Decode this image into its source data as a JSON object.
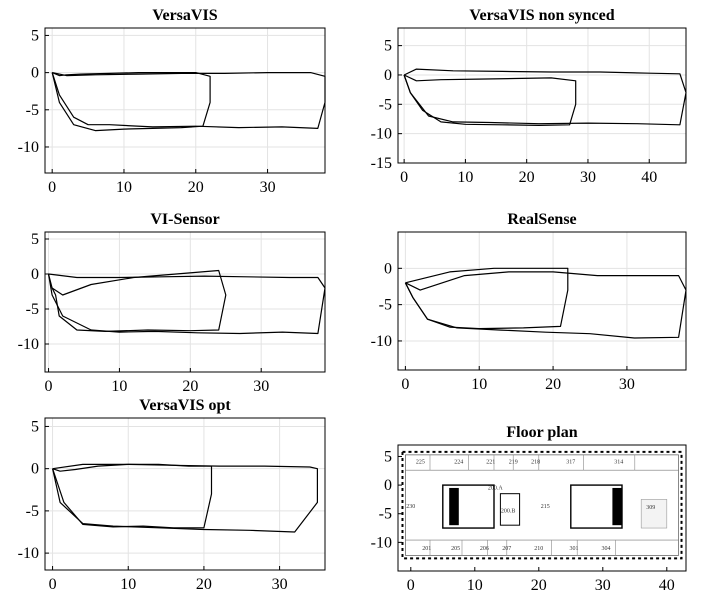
{
  "figure": {
    "panels": [
      {
        "title": "VersaVIS"
      },
      {
        "title": "VersaVIS non synced"
      },
      {
        "title": "VI-Sensor"
      },
      {
        "title": "RealSense"
      },
      {
        "title": "VersaVIS opt"
      },
      {
        "title": "Floor plan"
      }
    ]
  },
  "chart_data": [
    {
      "type": "line",
      "title": "VersaVIS",
      "xlim": [
        -1,
        38
      ],
      "ylim": [
        -13.5,
        6
      ],
      "xticks": [
        0,
        10,
        20,
        30
      ],
      "yticks": [
        5,
        0,
        -5,
        -10
      ],
      "grid": true,
      "series": [
        {
          "x": [
            0,
            1,
            2,
            4,
            8,
            12,
            16,
            20,
            22,
            22,
            21,
            18,
            14,
            10,
            6,
            3,
            1,
            0
          ],
          "y": [
            0,
            -0.4,
            -0.3,
            -0.2,
            -0.1,
            0,
            0,
            0,
            -0.5,
            -4,
            -7.2,
            -7.4,
            -7.5,
            -7.6,
            -7.8,
            -7,
            -4,
            0
          ]
        },
        {
          "x": [
            0,
            2,
            6,
            12,
            18,
            24,
            30,
            36,
            38,
            38,
            37,
            32,
            26,
            20,
            14,
            8,
            5,
            3,
            1,
            0
          ],
          "y": [
            0,
            -0.4,
            -0.3,
            -0.2,
            -0.1,
            -0.1,
            0,
            0,
            -0.5,
            -4,
            -7.5,
            -7.3,
            -7.4,
            -7.2,
            -7.3,
            -7,
            -7,
            -6,
            -3,
            0
          ]
        }
      ]
    },
    {
      "type": "line",
      "title": "VersaVIS non synced",
      "xlim": [
        -1,
        46
      ],
      "ylim": [
        -15,
        8
      ],
      "xticks": [
        0,
        10,
        20,
        30,
        40
      ],
      "yticks": [
        5,
        0,
        -5,
        -10,
        -15
      ],
      "grid": true,
      "series": [
        {
          "x": [
            0,
            2,
            6,
            12,
            18,
            24,
            28,
            28,
            27,
            22,
            16,
            10,
            6,
            3,
            1,
            0
          ],
          "y": [
            0,
            -1,
            -0.8,
            -0.7,
            -0.6,
            -0.5,
            -1,
            -5,
            -8.5,
            -8.6,
            -8.5,
            -8.4,
            -8,
            -6,
            -3,
            0
          ]
        },
        {
          "x": [
            0,
            2,
            8,
            16,
            24,
            32,
            40,
            45,
            46,
            45,
            38,
            30,
            22,
            14,
            8,
            4,
            1,
            0
          ],
          "y": [
            0,
            1,
            0.7,
            0.6,
            0.5,
            0.5,
            0.3,
            0.2,
            -3,
            -8.5,
            -8.3,
            -8.2,
            -8.3,
            -8.1,
            -8,
            -7,
            -3,
            0
          ]
        }
      ]
    },
    {
      "type": "line",
      "title": "VI-Sensor",
      "xlim": [
        -0.5,
        39
      ],
      "ylim": [
        -14,
        6
      ],
      "xticks": [
        0,
        10,
        20,
        30
      ],
      "yticks": [
        5,
        0,
        -5,
        -10
      ],
      "grid": true,
      "series": [
        {
          "x": [
            0,
            0.5,
            2,
            6,
            12,
            18,
            24,
            25,
            24,
            20,
            14,
            8,
            4,
            1.5,
            1,
            0.5,
            0
          ],
          "y": [
            0,
            -2,
            -3,
            -1.5,
            -0.5,
            0,
            0.5,
            -3,
            -8,
            -8.1,
            -8,
            -8.2,
            -8,
            -6,
            -3,
            -2,
            0
          ]
        },
        {
          "x": [
            0,
            4,
            10,
            16,
            22,
            28,
            34,
            38,
            39,
            38,
            33,
            27,
            21,
            15,
            10,
            6,
            2,
            0.5,
            0
          ],
          "y": [
            0,
            -0.5,
            -0.5,
            -0.4,
            -0.3,
            -0.4,
            -0.5,
            -0.5,
            -2,
            -8.5,
            -8.3,
            -8.5,
            -8.4,
            -8.2,
            -8.3,
            -8,
            -6,
            -3,
            0
          ]
        }
      ]
    },
    {
      "type": "line",
      "title": "RealSense",
      "xlim": [
        -1,
        38
      ],
      "ylim": [
        -14,
        5
      ],
      "xticks": [
        0,
        10,
        20,
        30
      ],
      "yticks": [
        0,
        -5,
        -10
      ],
      "grid": true,
      "series": [
        {
          "x": [
            0,
            2,
            6,
            12,
            18,
            22,
            22,
            21,
            16,
            10,
            6,
            3,
            1,
            0
          ],
          "y": [
            -2,
            -1.5,
            -0.5,
            0,
            0,
            0,
            -3,
            -8,
            -8.2,
            -8.3,
            -8.1,
            -7,
            -4,
            -2
          ]
        },
        {
          "x": [
            0,
            2,
            8,
            14,
            20,
            26,
            32,
            37,
            38,
            37,
            31,
            25,
            19,
            13,
            7,
            3,
            1,
            0
          ],
          "y": [
            -2,
            -3,
            -1,
            -0.5,
            -0.5,
            -1,
            -1,
            -1,
            -3,
            -9.5,
            -9.6,
            -9,
            -8.8,
            -8.5,
            -8.2,
            -7,
            -4,
            -2
          ]
        }
      ]
    },
    {
      "type": "line",
      "title": "VersaVIS opt",
      "xlim": [
        -1,
        36
      ],
      "ylim": [
        -12,
        6
      ],
      "xticks": [
        0,
        10,
        20,
        30
      ],
      "yticks": [
        5,
        0,
        -5,
        -10
      ],
      "grid": true,
      "series": [
        {
          "x": [
            0,
            1,
            3,
            6,
            10,
            14,
            18,
            21,
            21,
            20,
            16,
            12,
            8,
            4,
            1.5,
            0
          ],
          "y": [
            0,
            -0.3,
            -0.1,
            0.3,
            0.5,
            0.5,
            0.3,
            0.3,
            -3,
            -7,
            -7,
            -6.8,
            -6.9,
            -6.6,
            -4,
            0
          ]
        },
        {
          "x": [
            0,
            4,
            10,
            16,
            22,
            28,
            34,
            35,
            35,
            32,
            26,
            20,
            14,
            8,
            4,
            1,
            0
          ],
          "y": [
            0,
            0.5,
            0.5,
            0.4,
            0.3,
            0.3,
            0.2,
            0,
            -4,
            -7.5,
            -7.3,
            -7.2,
            -7,
            -6.8,
            -6.5,
            -4,
            0
          ]
        }
      ]
    },
    {
      "type": "image",
      "title": "Floor plan",
      "xlim": [
        -2,
        43
      ],
      "ylim": [
        -15,
        7
      ],
      "xticks": [
        0,
        10,
        20,
        30,
        40
      ],
      "yticks": [
        5,
        0,
        -5,
        -10
      ],
      "rooms_top": [
        "225",
        "224",
        "221",
        "219",
        "218",
        "317",
        "314"
      ],
      "rooms_middle": [
        "230",
        "215",
        "309",
        "200.A",
        "200.B"
      ],
      "rooms_bottom": [
        "201",
        "205",
        "206",
        "207",
        "210",
        "301",
        "304"
      ]
    }
  ]
}
